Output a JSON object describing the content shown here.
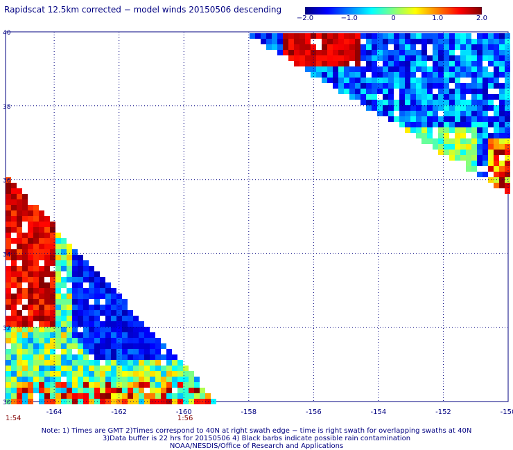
{
  "title": "Rapidscat 12.5km corrected − model winds 20150506 descending",
  "colorbar": {
    "range": [
      -2.0,
      2.0
    ],
    "labels": [
      "−2.0",
      "−1.0",
      "0",
      "1.0",
      "2.0"
    ],
    "label_values": [
      -2.0,
      -1.0,
      0,
      1.0,
      2.0
    ],
    "colors": [
      "#000080",
      "#0000ff",
      "#0080ff",
      "#00ffff",
      "#80ff80",
      "#ffff00",
      "#ff8000",
      "#ff0000",
      "#800000"
    ]
  },
  "map": {
    "lon_range": [
      -165.5,
      -150
    ],
    "lat_range": [
      30,
      40
    ],
    "grid_color": "#000080",
    "lon_labels": [
      {
        "lon": -164,
        "text": "-164"
      },
      {
        "lon": -162,
        "text": "-162"
      },
      {
        "lon": -160,
        "text": "-160"
      },
      {
        "lon": -158,
        "text": "-158"
      },
      {
        "lon": -156,
        "text": "-156"
      },
      {
        "lon": -154,
        "text": "-154"
      },
      {
        "lon": -152,
        "text": "-152"
      },
      {
        "lon": -150,
        "text": "-150"
      }
    ],
    "lat_labels": [
      {
        "lat": 40,
        "text": "40"
      },
      {
        "lat": 38,
        "text": "38"
      },
      {
        "lat": 36,
        "text": "36"
      },
      {
        "lat": 34,
        "text": "34"
      },
      {
        "lat": 32,
        "text": "32"
      },
      {
        "lat": 30,
        "text": "30"
      }
    ],
    "time_labels": [
      {
        "lon": -165.5,
        "text": "1:54"
      },
      {
        "lon": -160.2,
        "text": "1:56"
      }
    ]
  },
  "notes": {
    "line1": "Note: 1) Times are GMT 2)Times correspond to 40N at right swath edge − time is right swath for overlapping swaths at 40N",
    "line2": "3)Data buffer is 22 hrs for 20150506 4) Black barbs indicate possible rain contamination",
    "line3": "NOAA/NESDIS/Office of Research and Applications"
  }
}
